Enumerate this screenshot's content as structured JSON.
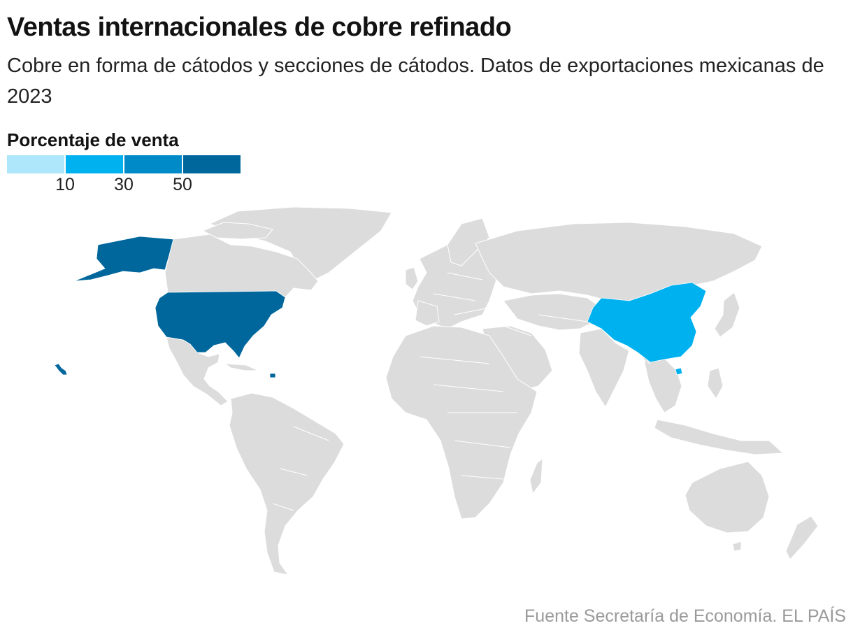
{
  "header": {
    "title": "Ventas internacionales de cobre refinado",
    "subtitle": "Cobre en forma de cátodos y secciones de cátodos. Datos de exportaciones mexicanas de 2023"
  },
  "legend": {
    "title": "Porcentaje de venta",
    "ticks": [
      "10",
      "30",
      "50"
    ],
    "colors": [
      "#aee6fb",
      "#00b1ef",
      "#008ac7",
      "#00679c"
    ]
  },
  "map": {
    "land_color": "#dcdcdc",
    "highlighted": [
      {
        "country": "Estados Unidos",
        "bin": 3,
        "color": "#00679c"
      },
      {
        "country": "China",
        "bin": 1,
        "color": "#00b1ef"
      }
    ]
  },
  "footer": {
    "source": "Fuente Secretaría de Economía. EL PAÍS"
  }
}
